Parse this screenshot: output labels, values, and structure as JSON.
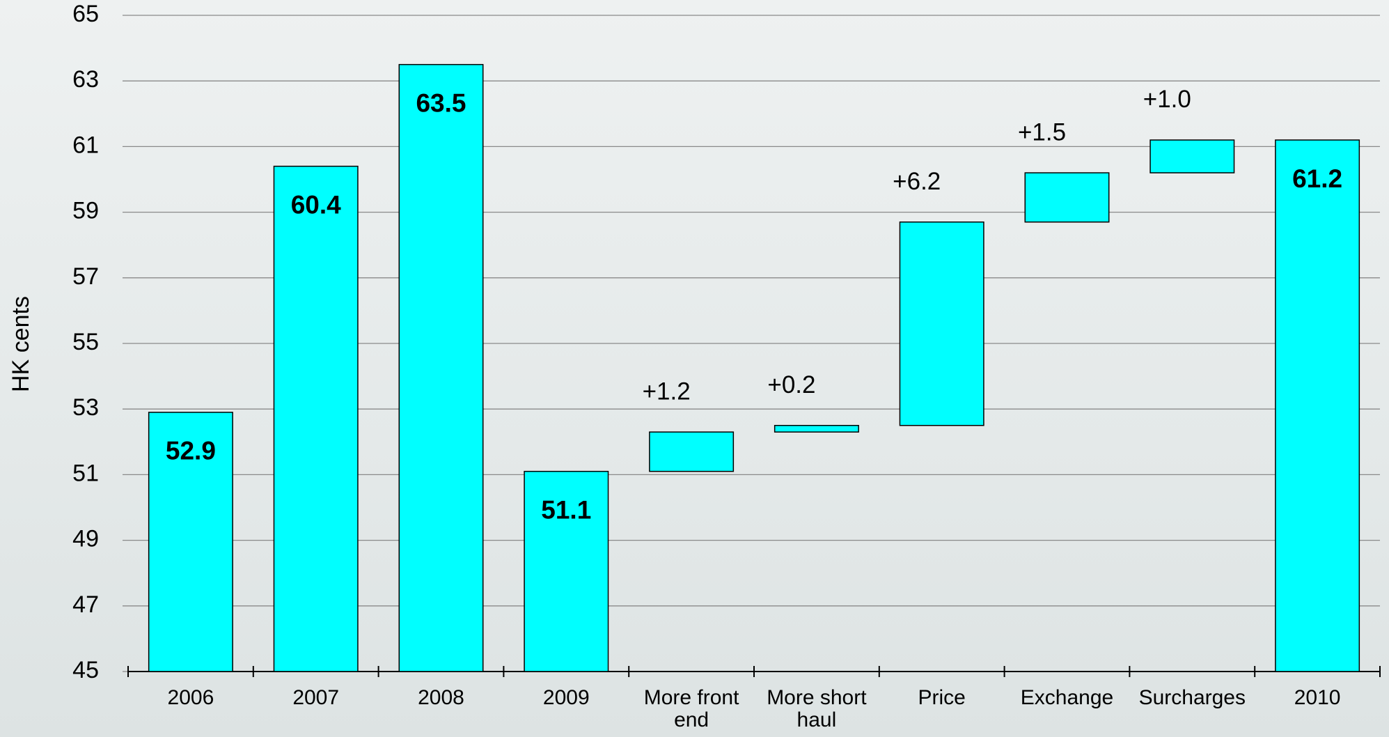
{
  "chart_data": {
    "type": "waterfall",
    "y_label": "HK cents",
    "categories": [
      "2006",
      "2007",
      "2008",
      "2009",
      "More front end",
      "More short haul",
      "Price",
      "Exchange",
      "Surcharges",
      "2010"
    ],
    "values": [
      52.9,
      60.4,
      63.5,
      51.1,
      1.2,
      0.2,
      6.2,
      1.5,
      1.0,
      61.2
    ],
    "value_labels": [
      "52.9",
      "60.4",
      "63.5",
      "51.1",
      "+1.2",
      "+0.2",
      "+6.2",
      "+1.5",
      "+1.0",
      "61.2"
    ],
    "measure": [
      "total",
      "total",
      "total",
      "total",
      "relative",
      "relative",
      "relative",
      "relative",
      "relative",
      "total"
    ],
    "color": "#00ffff",
    "ylim": [
      45,
      65
    ],
    "yticks": [
      45,
      47,
      49,
      51,
      53,
      55,
      57,
      59,
      61,
      63,
      65
    ],
    "grid": true
  }
}
